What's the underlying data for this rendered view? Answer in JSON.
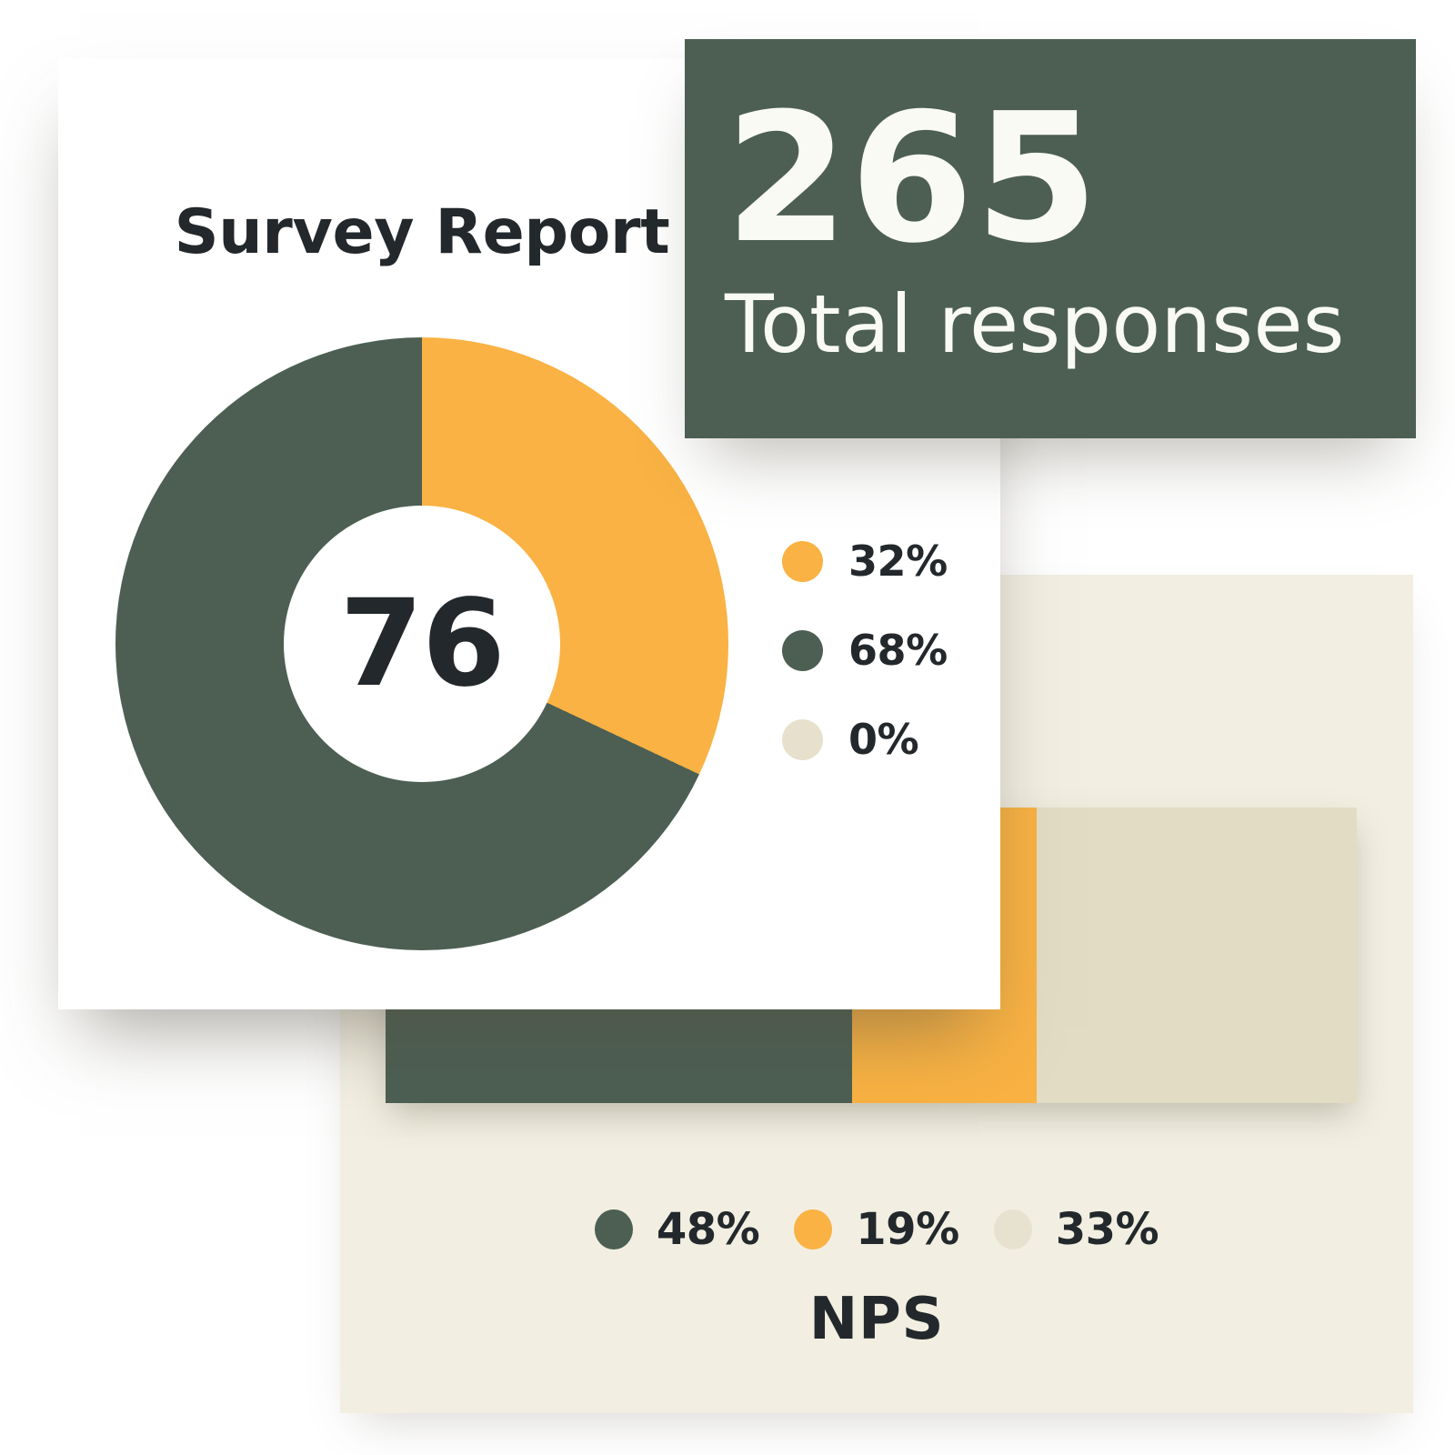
{
  "palette": {
    "orange": "#F9B243",
    "green": "#4C5F52",
    "beige_dot": "#E6E0CC",
    "tan": "#E3DCC5",
    "cream_panel": "#F2EFE2",
    "ink": "#22282B",
    "card_white": "#FFFFFF",
    "text_on_green": "#FAFAF5"
  },
  "survey_card": {
    "title": "Survey Report"
  },
  "total_card": {
    "value": "265",
    "label": "Total responses"
  },
  "donut_chart": {
    "center_value": "76",
    "segments": [
      {
        "label": "32%",
        "value": 32,
        "color": "#F9B243"
      },
      {
        "label": "68%",
        "value": 68,
        "color": "#4C5F52"
      },
      {
        "label": "0%",
        "value": 0,
        "color": "#E6E0CC"
      }
    ]
  },
  "nps_chart": {
    "title": "NPS",
    "segments": [
      {
        "label": "48%",
        "value": 48,
        "color": "#4C5F52",
        "dot_color": "#4C5F52"
      },
      {
        "label": "19%",
        "value": 19,
        "color": "#F9B243",
        "dot_color": "#F9B243"
      },
      {
        "label": "33%",
        "value": 33,
        "color": "#E3DCC5",
        "dot_color": "#E7E1CF"
      }
    ]
  },
  "chart_data": [
    {
      "type": "pie",
      "subtype": "donut",
      "title": "Survey Report",
      "center_label": "76",
      "labels": [
        "32%",
        "68%",
        "0%"
      ],
      "values": [
        32,
        68,
        0
      ],
      "colors": [
        "#F9B243",
        "#4C5F52",
        "#E6E0CC"
      ],
      "start_angle_deg": 0,
      "direction": "clockwise",
      "legend_position": "right"
    },
    {
      "type": "bar",
      "title": "NPS",
      "orientation": "horizontal",
      "stacked": true,
      "categories": [
        "NPS"
      ],
      "series": [
        {
          "name": "48%",
          "values": [
            48
          ],
          "color": "#4C5F52"
        },
        {
          "name": "19%",
          "values": [
            19
          ],
          "color": "#F9B243"
        },
        {
          "name": "33%",
          "values": [
            33
          ],
          "color": "#E3DCC5"
        }
      ],
      "xlim": [
        0,
        100
      ],
      "legend_position": "bottom"
    },
    {
      "type": "table",
      "title": "Total responses",
      "categories": [
        "Total responses"
      ],
      "values": [
        265
      ]
    }
  ]
}
